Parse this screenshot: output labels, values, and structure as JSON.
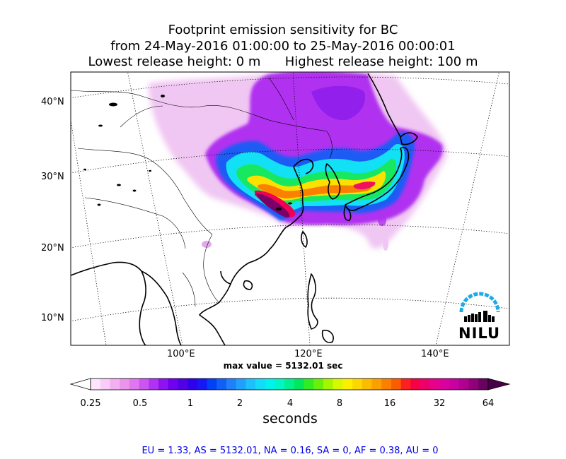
{
  "title": {
    "line1": "Footprint emission sensitivity for BC",
    "line2": "from 24-May-2016 01:00:00 to 25-May-2016 00:00:01",
    "line3": "Lowest release height: 0 m      Highest release height: 100 m"
  },
  "axes": {
    "lat_labels": [
      "40°N",
      "30°N",
      "20°N",
      "10°N"
    ],
    "lon_labels": [
      "100°E",
      "120°E",
      "140°E"
    ]
  },
  "max_value_text": "max value = 5132.01 sec",
  "colorbar": {
    "tick_labels": [
      "0.25",
      "0.5",
      "1",
      "2",
      "4",
      "8",
      "16",
      "32",
      "64"
    ],
    "title": "seconds",
    "colors": [
      "#fde6fd",
      "#f9ccf9",
      "#f2b0f2",
      "#eb94eb",
      "#e077f0",
      "#cc55f2",
      "#b033f4",
      "#8f12f2",
      "#6f00f0",
      "#5200e6",
      "#3000ec",
      "#1418f4",
      "#0040f6",
      "#1060f8",
      "#1e80fa",
      "#20a0fc",
      "#1cc0fc",
      "#12dcf8",
      "#00f2ec",
      "#00f6c4",
      "#00f090",
      "#00e85a",
      "#30ec24",
      "#68f00a",
      "#a4f600",
      "#d8f800",
      "#fcf000",
      "#fcd800",
      "#fcbc00",
      "#fca000",
      "#fc8000",
      "#fc5c00",
      "#fc2020",
      "#f60046",
      "#ee006a",
      "#e6008a",
      "#da00a0",
      "#c800a0",
      "#b00090",
      "#900078",
      "#6a0060"
    ],
    "extend_low_color": "#ffffff",
    "extend_high_color": "#4a0048"
  },
  "stats_text": "EU = 1.33,  AS = 5132.01,  NA = 0.16,  SA = 0,  AF = 0.38,  AU = 0",
  "logo": {
    "text": "NILU",
    "arc_color": "#1eaae6"
  }
}
